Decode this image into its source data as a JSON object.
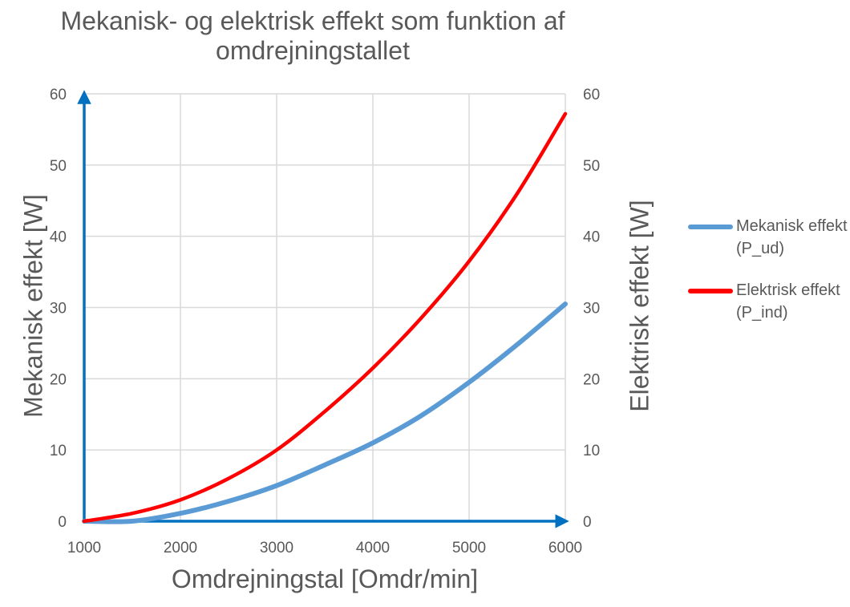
{
  "chart_data": {
    "type": "line",
    "title": "Mekanisk- og elektrisk effekt som funktion af omdrejningstallet",
    "xlabel": "Omdrejningstal [Omdr/min]",
    "ylabel": "Mekanisk effekt [W]",
    "y2label": "Elektrisk effekt [W]",
    "xlim": [
      1000,
      6000
    ],
    "ylim": [
      0,
      60
    ],
    "y2lim": [
      0,
      60
    ],
    "x_ticks": [
      1000,
      2000,
      3000,
      4000,
      5000,
      6000
    ],
    "y_ticks": [
      0,
      10,
      20,
      30,
      40,
      50,
      60
    ],
    "y2_ticks": [
      0,
      10,
      20,
      30,
      40,
      50,
      60
    ],
    "grid": true,
    "legend_position": "right",
    "series": [
      {
        "name": "Mekanisk effekt (P_ud)",
        "color": "#5B9BD5",
        "x": [
          1000,
          1500,
          2000,
          2500,
          3000,
          3500,
          4000,
          4500,
          5000,
          5500,
          6000
        ],
        "y": [
          0,
          0,
          1.1,
          2.8,
          5.0,
          7.9,
          11.0,
          14.8,
          19.5,
          24.8,
          30.5
        ]
      },
      {
        "name": "Elektrisk effekt (P_ind)",
        "color": "#FF0000",
        "x": [
          1000,
          1500,
          2000,
          2500,
          3000,
          3500,
          4000,
          4500,
          5000,
          5500,
          6000
        ],
        "y": [
          0,
          1.1,
          3.0,
          6.0,
          10.0,
          15.4,
          21.5,
          28.5,
          36.5,
          46.0,
          57.2
        ]
      }
    ]
  }
}
